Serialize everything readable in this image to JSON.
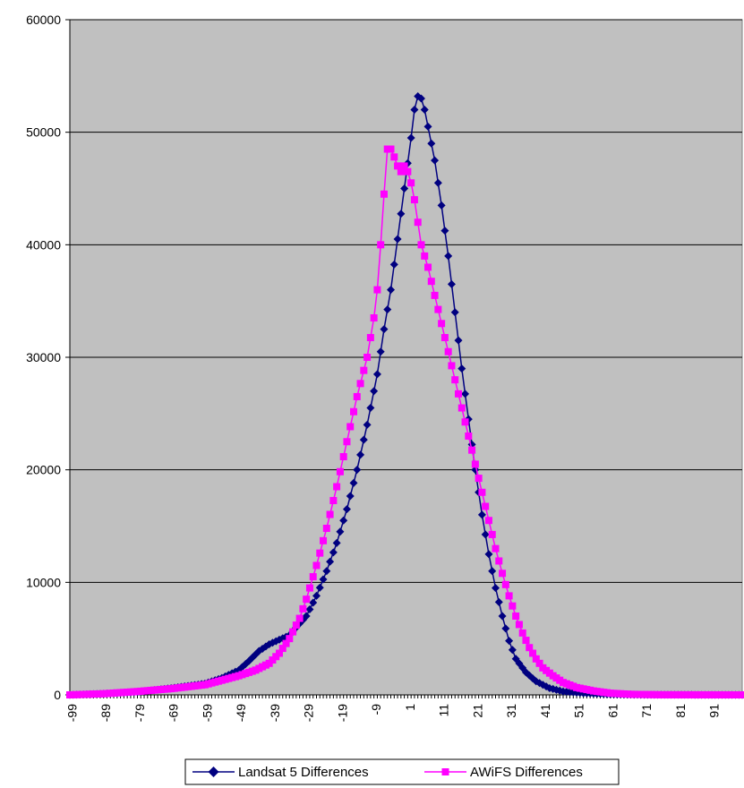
{
  "chart_data": {
    "type": "line",
    "title": "",
    "xlabel": "",
    "ylabel": "",
    "x_range": [
      -100,
      99
    ],
    "ylim": [
      0,
      60000
    ],
    "y_ticks": [
      0,
      10000,
      20000,
      30000,
      40000,
      50000,
      60000
    ],
    "x_tick_labels": [
      -99,
      -89,
      -79,
      -69,
      -59,
      -49,
      -39,
      -29,
      -19,
      -9,
      1,
      11,
      21,
      31,
      41,
      51,
      61,
      71,
      81,
      91
    ],
    "grid": "horizontal",
    "plot_background": "#C0C0C0",
    "legend_position": "bottom",
    "series": [
      {
        "name": "Landsat 5 Differences",
        "color": "#000080",
        "marker": "diamond",
        "points": [
          [
            -100,
            0
          ],
          [
            -90,
            100
          ],
          [
            -80,
            250
          ],
          [
            -70,
            600
          ],
          [
            -60,
            1000
          ],
          [
            -55,
            1500
          ],
          [
            -50,
            2200
          ],
          [
            -47,
            3000
          ],
          [
            -44,
            3900
          ],
          [
            -41,
            4500
          ],
          [
            -38,
            4900
          ],
          [
            -35,
            5300
          ],
          [
            -33,
            6000
          ],
          [
            -30,
            7000
          ],
          [
            -27,
            8800
          ],
          [
            -24,
            11000
          ],
          [
            -21,
            13500
          ],
          [
            -18,
            16500
          ],
          [
            -15,
            20000
          ],
          [
            -12,
            24000
          ],
          [
            -9,
            28500
          ],
          [
            -7,
            32500
          ],
          [
            -5,
            36000
          ],
          [
            -3,
            40500
          ],
          [
            -1,
            45000
          ],
          [
            1,
            49500
          ],
          [
            2,
            52000
          ],
          [
            3,
            53200
          ],
          [
            4,
            53000
          ],
          [
            5,
            52000
          ],
          [
            6,
            50500
          ],
          [
            8,
            47500
          ],
          [
            10,
            43500
          ],
          [
            12,
            39000
          ],
          [
            14,
            34000
          ],
          [
            16,
            29000
          ],
          [
            18,
            24500
          ],
          [
            20,
            20000
          ],
          [
            22,
            16000
          ],
          [
            24,
            12500
          ],
          [
            26,
            9500
          ],
          [
            28,
            7000
          ],
          [
            30,
            4800
          ],
          [
            32,
            3200
          ],
          [
            35,
            2000
          ],
          [
            38,
            1200
          ],
          [
            42,
            600
          ],
          [
            46,
            300
          ],
          [
            52,
            150
          ],
          [
            60,
            50
          ],
          [
            70,
            10
          ],
          [
            99,
            0
          ]
        ]
      },
      {
        "name": "AWiFS Differences",
        "color": "#FF00FF",
        "marker": "square",
        "points": [
          [
            -100,
            0
          ],
          [
            -90,
            100
          ],
          [
            -80,
            300
          ],
          [
            -70,
            550
          ],
          [
            -60,
            900
          ],
          [
            -55,
            1300
          ],
          [
            -50,
            1700
          ],
          [
            -45,
            2200
          ],
          [
            -41,
            2800
          ],
          [
            -38,
            3700
          ],
          [
            -35,
            5000
          ],
          [
            -32,
            6800
          ],
          [
            -30,
            8500
          ],
          [
            -27,
            11500
          ],
          [
            -24,
            14800
          ],
          [
            -21,
            18500
          ],
          [
            -18,
            22500
          ],
          [
            -15,
            26500
          ],
          [
            -12,
            30000
          ],
          [
            -10,
            33500
          ],
          [
            -9,
            36000
          ],
          [
            -8,
            40000
          ],
          [
            -7,
            44500
          ],
          [
            -6,
            48500
          ],
          [
            -5,
            48500
          ],
          [
            -4,
            47800
          ],
          [
            -3,
            47000
          ],
          [
            -2,
            46500
          ],
          [
            -1,
            47000
          ],
          [
            0,
            46500
          ],
          [
            1,
            45500
          ],
          [
            2,
            44000
          ],
          [
            3,
            42000
          ],
          [
            4,
            40000
          ],
          [
            6,
            38000
          ],
          [
            8,
            35500
          ],
          [
            10,
            33000
          ],
          [
            12,
            30500
          ],
          [
            14,
            28000
          ],
          [
            16,
            25500
          ],
          [
            18,
            23000
          ],
          [
            20,
            20500
          ],
          [
            22,
            18000
          ],
          [
            24,
            15500
          ],
          [
            26,
            13000
          ],
          [
            28,
            10800
          ],
          [
            30,
            8800
          ],
          [
            32,
            7000
          ],
          [
            34,
            5500
          ],
          [
            36,
            4200
          ],
          [
            38,
            3200
          ],
          [
            40,
            2400
          ],
          [
            43,
            1700
          ],
          [
            46,
            1100
          ],
          [
            50,
            650
          ],
          [
            55,
            350
          ],
          [
            60,
            150
          ],
          [
            66,
            50
          ],
          [
            75,
            10
          ],
          [
            99,
            0
          ]
        ]
      }
    ]
  }
}
